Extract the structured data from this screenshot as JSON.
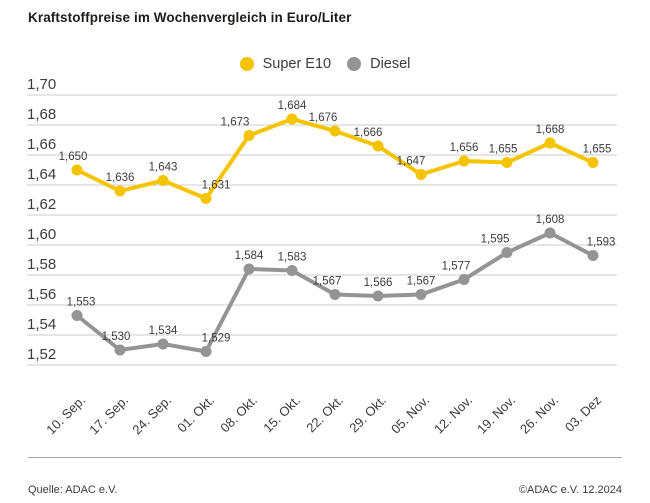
{
  "header": {
    "title": "Kraftstoffpreise im Wochenvergleich in Euro/Liter"
  },
  "legend": [
    {
      "label": "Super E10",
      "color": "#F5C400"
    },
    {
      "label": "Diesel",
      "color": "#949494"
    }
  ],
  "chart_data": {
    "type": "line",
    "title": "Kraftstoffpreise im Wochenvergleich in Euro/Liter",
    "xlabel": "",
    "ylabel": "Euro/Liter",
    "ylim": [
      1.52,
      1.7
    ],
    "ytick_step": 0.02,
    "grid": true,
    "legend_position": "top-center",
    "categories": [
      "10. Sep.",
      "17. Sep.",
      "24. Sep.",
      "01. Okt.",
      "08. Okt.",
      "15. Okt.",
      "22. Okt.",
      "29. Okt.",
      "05. Nov.",
      "12. Nov.",
      "19. Nov.",
      "26. Nov.",
      "03. Dez"
    ],
    "series": [
      {
        "name": "Super E10",
        "color": "#F5C400",
        "values": [
          1.65,
          1.636,
          1.643,
          1.631,
          1.673,
          1.684,
          1.676,
          1.666,
          1.647,
          1.656,
          1.655,
          1.668,
          1.655
        ]
      },
      {
        "name": "Diesel",
        "color": "#949494",
        "values": [
          1.553,
          1.53,
          1.534,
          1.529,
          1.584,
          1.583,
          1.567,
          1.566,
          1.567,
          1.577,
          1.595,
          1.608,
          1.593
        ]
      }
    ]
  },
  "footer": {
    "source": "Quelle: ADAC e.V.",
    "copyright": "©ADAC e.V. 12.2024"
  }
}
